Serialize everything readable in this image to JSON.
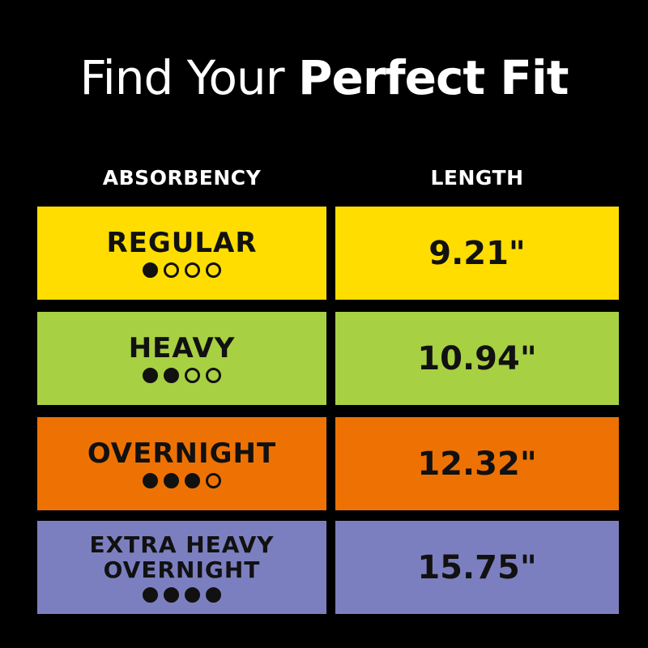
{
  "title": {
    "light": "Find Your",
    "bold": "Perfect Fit"
  },
  "headers": {
    "absorbency": "ABSORBENCY",
    "length": "LENGTH"
  },
  "rows": [
    {
      "name": "REGULAR",
      "level": 1,
      "max_level": 4,
      "length": "9.21\"",
      "color": "#FFDD00"
    },
    {
      "name": "HEAVY",
      "level": 2,
      "max_level": 4,
      "length": "10.94\"",
      "color": "#A8D043"
    },
    {
      "name": "OVERNIGHT",
      "level": 3,
      "max_level": 4,
      "length": "12.32\"",
      "color": "#EE7203"
    },
    {
      "name_line1": "EXTRA HEAVY",
      "name_line2": "OVERNIGHT",
      "level": 4,
      "max_level": 4,
      "length": "15.75\"",
      "color": "#7C7FBF"
    }
  ]
}
